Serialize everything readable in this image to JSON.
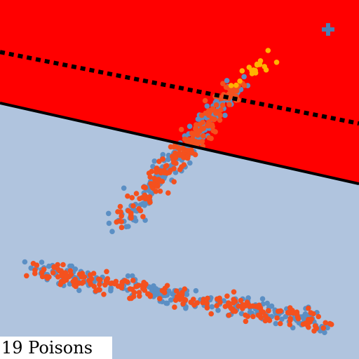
{
  "caption": "19 Poisons",
  "chart_data": {
    "type": "scatter",
    "title": "",
    "xlabel": "",
    "ylabel": "",
    "xlim": [
      0,
      1
    ],
    "ylim": [
      0,
      1
    ],
    "grid": false,
    "legend": "none",
    "regions": [
      {
        "name": "",
        "color": "#ff0000"
      },
      {
        "name": "",
        "color": "#b0c4de"
      }
    ],
    "lines": [
      {
        "name": "",
        "style": "solid",
        "color": "#000000",
        "points": [
          [
            0.0,
            0.713
          ],
          [
            1.0,
            0.488
          ]
        ]
      },
      {
        "name": "",
        "style": "dotted",
        "color": "#000000",
        "points": [
          [
            0.0,
            0.855
          ],
          [
            1.0,
            0.656
          ]
        ]
      }
    ],
    "target_marker": {
      "symbol": "plus",
      "color": "#4c7fb3",
      "point": [
        0.914,
        0.918
      ]
    },
    "colors": {
      "blue": "#5b8fc4",
      "orange": "#f4511e",
      "gold": "#ffb300"
    },
    "clusters": [
      {
        "kind": "upper-diagonal",
        "blue": 190,
        "orange": 190,
        "from": [
          0.33,
          0.37
        ],
        "to": [
          0.66,
          0.76
        ],
        "spread": 0.03
      },
      {
        "kind": "lower-band",
        "blue": 210,
        "orange": 210,
        "from": [
          0.09,
          0.25
        ],
        "to": [
          0.91,
          0.1
        ],
        "spread": 0.025
      },
      {
        "kind": "poison-cluster",
        "gold": 19,
        "from": [
          0.63,
          0.76
        ],
        "to": [
          0.76,
          0.84
        ],
        "spread": 0.02
      }
    ]
  }
}
